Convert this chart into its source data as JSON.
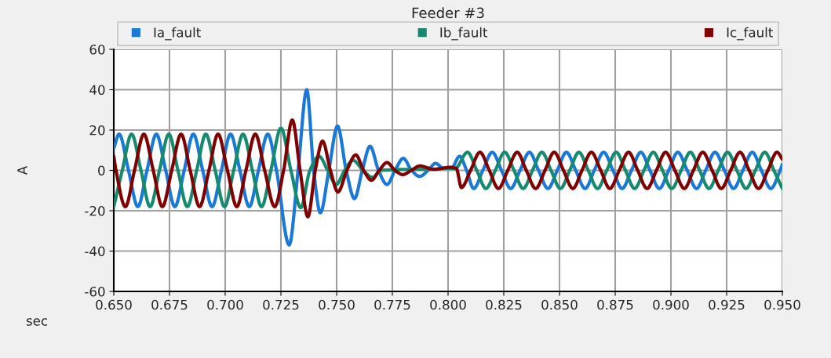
{
  "chart_data": {
    "type": "line",
    "title": "Feeder #3",
    "xlabel": "sec",
    "ylabel": "A",
    "xlim": [
      0.65,
      0.95
    ],
    "ylim": [
      -60,
      60
    ],
    "xticks": [
      {
        "value": 0.65,
        "label": "0.650"
      },
      {
        "value": 0.675,
        "label": "0.675"
      },
      {
        "value": 0.7,
        "label": "0.700"
      },
      {
        "value": 0.725,
        "label": "0.725"
      },
      {
        "value": 0.75,
        "label": "0.750"
      },
      {
        "value": 0.775,
        "label": "0.775"
      },
      {
        "value": 0.8,
        "label": "0.800"
      },
      {
        "value": 0.825,
        "label": "0.825"
      },
      {
        "value": 0.85,
        "label": "0.850"
      },
      {
        "value": 0.875,
        "label": "0.875"
      },
      {
        "value": 0.9,
        "label": "0.900"
      },
      {
        "value": 0.925,
        "label": "0.925"
      },
      {
        "value": 0.95,
        "label": "0.950"
      }
    ],
    "yticks": [
      -60,
      -40,
      -20,
      0,
      20,
      40,
      60
    ],
    "grid": true,
    "legend": "top",
    "marker": "none",
    "line_style": "solid",
    "series": [
      {
        "name": "Ia_fault",
        "color": "#1a78d6",
        "x": [
          0.65,
          0.6524,
          0.6566,
          0.6608,
          0.6649,
          0.6691,
          0.6733,
          0.6774,
          0.6816,
          0.6857,
          0.6899,
          0.6941,
          0.6983,
          0.7024,
          0.7066,
          0.7108,
          0.7149,
          0.7191,
          0.723,
          0.7287,
          0.7327,
          0.7366,
          0.7397,
          0.7427,
          0.7465,
          0.7504,
          0.7543,
          0.758,
          0.7615,
          0.765,
          0.7688,
          0.7726,
          0.7762,
          0.7799,
          0.7836,
          0.7873,
          0.791,
          0.7944,
          0.798,
          0.8014,
          0.8052,
          0.8083,
          0.8115,
          0.8156,
          0.8198,
          0.824,
          0.8281,
          0.8323,
          0.8365,
          0.8406,
          0.8448,
          0.849,
          0.8531,
          0.8573,
          0.8615,
          0.8656,
          0.8698,
          0.874,
          0.8781,
          0.8823,
          0.8865,
          0.8906,
          0.8948,
          0.899,
          0.9031,
          0.9073,
          0.9115,
          0.9156,
          0.9198,
          0.924,
          0.9281,
          0.9323,
          0.9365,
          0.9406,
          0.9448,
          0.949,
          0.95
        ],
        "values": [
          11,
          18,
          0,
          -18,
          0,
          18,
          0,
          -18,
          0,
          18,
          0,
          -18,
          0,
          18,
          0,
          -18,
          0,
          18,
          0,
          -37,
          0,
          40,
          0,
          -21,
          0,
          22,
          0,
          -14,
          0,
          12,
          0,
          -7,
          0,
          6,
          0,
          -3,
          0,
          3.5,
          1,
          1,
          7,
          0,
          -9,
          0,
          9,
          0,
          -9,
          0,
          9,
          0,
          -9,
          0,
          9,
          0,
          -9,
          0,
          9,
          0,
          -9,
          0,
          9,
          0,
          -9,
          0,
          9,
          0,
          -9,
          0,
          9,
          0,
          -9,
          0,
          9,
          0,
          -9,
          0,
          3
        ]
      },
      {
        "name": "Ib_fault",
        "color": "#158a6e",
        "x": [
          0.65,
          0.6538,
          0.658,
          0.6622,
          0.6663,
          0.6705,
          0.6747,
          0.6788,
          0.683,
          0.6872,
          0.6913,
          0.6955,
          0.6997,
          0.7038,
          0.708,
          0.7122,
          0.7163,
          0.7205,
          0.725,
          0.7295,
          0.7339,
          0.738,
          0.7421,
          0.746,
          0.7498,
          0.7536,
          0.7574,
          0.7618,
          0.7662,
          0.77,
          0.775,
          0.78,
          0.79,
          0.8,
          0.8032,
          0.8087,
          0.8129,
          0.817,
          0.8212,
          0.8254,
          0.8296,
          0.8337,
          0.8379,
          0.8421,
          0.8462,
          0.8504,
          0.8546,
          0.8587,
          0.8629,
          0.8671,
          0.8712,
          0.8754,
          0.8796,
          0.8837,
          0.8879,
          0.8921,
          0.8962,
          0.9004,
          0.9046,
          0.9087,
          0.9129,
          0.9171,
          0.9212,
          0.9254,
          0.9296,
          0.9337,
          0.9379,
          0.9421,
          0.9462,
          0.95
        ],
        "values": [
          -18,
          0,
          18,
          0,
          -18,
          0,
          18,
          0,
          -18,
          0,
          18,
          0,
          -18,
          0,
          18,
          0,
          -18,
          0,
          21,
          0,
          -18.5,
          0,
          7,
          0,
          -7,
          0,
          5,
          0,
          -3.5,
          0,
          0.3,
          0.5,
          0.5,
          1,
          1,
          9,
          0,
          -9,
          0,
          9,
          0,
          -9,
          0,
          9,
          0,
          -9,
          0,
          9,
          0,
          -9,
          0,
          9,
          0,
          -9,
          0,
          9,
          0,
          -9,
          0,
          9,
          0,
          -9,
          0,
          9,
          0,
          -9,
          0,
          9,
          0,
          -9
        ]
      },
      {
        "name": "Ic_fault",
        "color": "#800000",
        "x": [
          0.65,
          0.651,
          0.6552,
          0.6593,
          0.6635,
          0.6677,
          0.6718,
          0.676,
          0.6802,
          0.6843,
          0.6885,
          0.6927,
          0.6968,
          0.701,
          0.7052,
          0.7093,
          0.7135,
          0.7177,
          0.7222,
          0.7262,
          0.7301,
          0.7336,
          0.7371,
          0.7404,
          0.7437,
          0.7472,
          0.7506,
          0.7546,
          0.7586,
          0.7621,
          0.7656,
          0.7691,
          0.7726,
          0.7762,
          0.7797,
          0.7835,
          0.7873,
          0.7937,
          0.8008,
          0.8037,
          0.806,
          0.8101,
          0.8143,
          0.8185,
          0.8226,
          0.8268,
          0.831,
          0.8351,
          0.8393,
          0.8435,
          0.8476,
          0.8518,
          0.856,
          0.8601,
          0.8643,
          0.8685,
          0.8726,
          0.8768,
          0.881,
          0.8851,
          0.8893,
          0.8935,
          0.8976,
          0.9018,
          0.906,
          0.9101,
          0.9143,
          0.9185,
          0.9226,
          0.9268,
          0.931,
          0.9351,
          0.9393,
          0.9435,
          0.9476,
          0.95
        ],
        "values": [
          7,
          0,
          -18,
          0,
          18,
          0,
          -18,
          0,
          18,
          0,
          -18,
          0,
          18,
          0,
          -18,
          0,
          18,
          0,
          -18,
          0,
          25,
          0,
          -23,
          0,
          14.5,
          0,
          -10.7,
          0,
          7.7,
          0,
          -4.9,
          0,
          3.9,
          0,
          -2.1,
          0,
          2.2,
          0.5,
          1.5,
          1,
          -8.5,
          0,
          9,
          0,
          -9,
          0,
          9,
          0,
          -9,
          0,
          9,
          0,
          -9,
          0,
          9,
          0,
          -9,
          0,
          9,
          0,
          -9,
          0,
          9,
          0,
          -9,
          0,
          9,
          0,
          -9,
          0,
          9,
          0,
          -9,
          0,
          9,
          5.5
        ]
      }
    ]
  }
}
